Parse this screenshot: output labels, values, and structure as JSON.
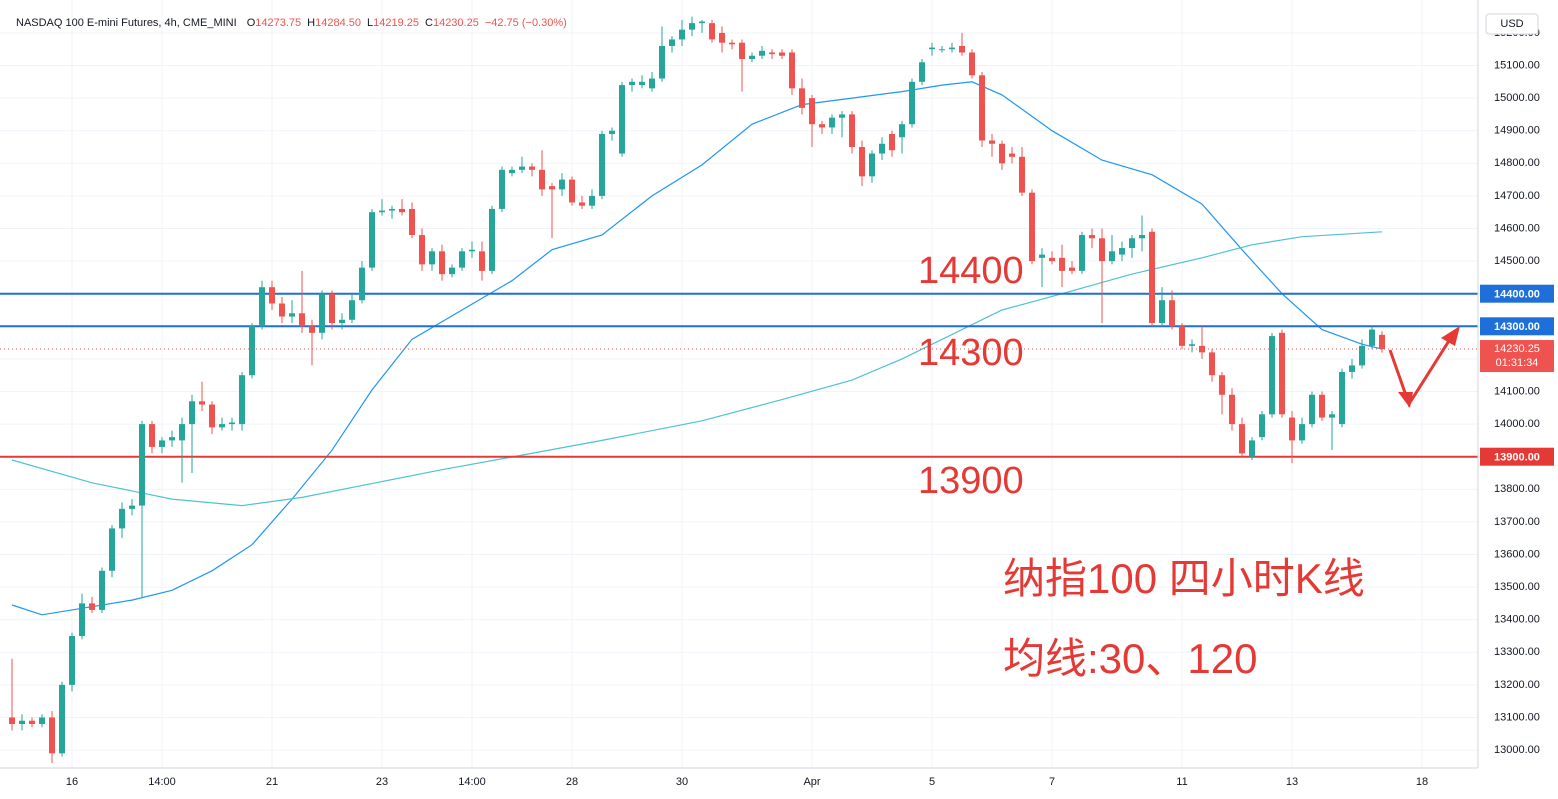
{
  "chart_data": {
    "type": "candlestick",
    "title": "NASDAQ 100 E-mini Futures, 4h, CME_MINI",
    "ohlc_legend": [
      {
        "key": "O",
        "value": "14273.75"
      },
      {
        "key": "H",
        "value": "14284.50"
      },
      {
        "key": "L",
        "value": "14219.25"
      },
      {
        "key": "C",
        "value": "14230.25"
      }
    ],
    "change": "−42.75 (−0.30%)",
    "currency": "USD",
    "up_color": "#26a69a",
    "down_color": "#ef5350",
    "ohlc": [
      [
        13100,
        13280,
        13060,
        13080
      ],
      [
        13080,
        13110,
        13060,
        13090
      ],
      [
        13090,
        13100,
        13070,
        13080
      ],
      [
        13080,
        13110,
        13070,
        13100
      ],
      [
        13100,
        13120,
        12960,
        12990
      ],
      [
        12990,
        13210,
        12980,
        13200
      ],
      [
        13200,
        13360,
        13180,
        13350
      ],
      [
        13350,
        13480,
        13340,
        13450
      ],
      [
        13450,
        13470,
        13420,
        13430
      ],
      [
        13430,
        13560,
        13420,
        13550
      ],
      [
        13550,
        13690,
        13530,
        13680
      ],
      [
        13680,
        13760,
        13650,
        13740
      ],
      [
        13740,
        13770,
        13720,
        13750
      ],
      [
        13750,
        14010,
        13470,
        14000
      ],
      [
        14000,
        14010,
        13910,
        13930
      ],
      [
        13930,
        13960,
        13910,
        13950
      ],
      [
        13950,
        13980,
        13930,
        13960
      ],
      [
        13950,
        14020,
        13820,
        14000
      ],
      [
        14000,
        14090,
        13850,
        14070
      ],
      [
        14070,
        14130,
        14040,
        14060
      ],
      [
        14060,
        14070,
        13970,
        13990
      ],
      [
        13990,
        14020,
        13980,
        14000
      ],
      [
        14000,
        14020,
        13980,
        14005
      ],
      [
        14000,
        14160,
        13980,
        14150
      ],
      [
        14150,
        14310,
        14140,
        14300
      ],
      [
        14300,
        14440,
        14290,
        14420
      ],
      [
        14420,
        14440,
        14350,
        14370
      ],
      [
        14370,
        14390,
        14310,
        14330
      ],
      [
        14330,
        14380,
        14310,
        14340
      ],
      [
        14340,
        14470,
        14280,
        14300
      ],
      [
        14300,
        14320,
        14180,
        14280
      ],
      [
        14280,
        14410,
        14260,
        14400
      ],
      [
        14400,
        14410,
        14290,
        14310
      ],
      [
        14310,
        14340,
        14290,
        14320
      ],
      [
        14320,
        14400,
        14310,
        14380
      ],
      [
        14380,
        14500,
        14370,
        14480
      ],
      [
        14480,
        14660,
        14470,
        14650
      ],
      [
        14650,
        14690,
        14640,
        14655
      ],
      [
        14655,
        14670,
        14630,
        14660
      ],
      [
        14660,
        14690,
        14640,
        14650
      ],
      [
        14660,
        14680,
        14570,
        14580
      ],
      [
        14580,
        14600,
        14470,
        14490
      ],
      [
        14490,
        14540,
        14470,
        14530
      ],
      [
        14530,
        14550,
        14440,
        14460
      ],
      [
        14460,
        14490,
        14450,
        14480
      ],
      [
        14480,
        14540,
        14470,
        14530
      ],
      [
        14530,
        14560,
        14510,
        14535
      ],
      [
        14530,
        14560,
        14440,
        14470
      ],
      [
        14470,
        14670,
        14460,
        14660
      ],
      [
        14660,
        14790,
        14650,
        14780
      ],
      [
        14770,
        14790,
        14760,
        14780
      ],
      [
        14780,
        14820,
        14770,
        14790
      ],
      [
        14790,
        14800,
        14760,
        14780
      ],
      [
        14780,
        14840,
        14700,
        14720
      ],
      [
        14730,
        14740,
        14570,
        14720
      ],
      [
        14720,
        14770,
        14700,
        14750
      ],
      [
        14750,
        14760,
        14670,
        14680
      ],
      [
        14680,
        14700,
        14660,
        14670
      ],
      [
        14670,
        14720,
        14660,
        14700
      ],
      [
        14700,
        14900,
        14690,
        14890
      ],
      [
        14890,
        14910,
        14870,
        14900
      ],
      [
        14830,
        15050,
        14820,
        15040
      ],
      [
        15040,
        15060,
        15020,
        15050
      ],
      [
        15040,
        15070,
        15030,
        15050
      ],
      [
        15030,
        15080,
        15020,
        15060
      ],
      [
        15060,
        15220,
        15050,
        15160
      ],
      [
        15160,
        15190,
        15140,
        15180
      ],
      [
        15180,
        15240,
        15160,
        15210
      ],
      [
        15210,
        15250,
        15190,
        15230
      ],
      [
        15230,
        15240,
        15200,
        15235
      ],
      [
        15230,
        15240,
        15170,
        15180
      ],
      [
        15200,
        15220,
        15140,
        15170
      ],
      [
        15170,
        15180,
        15150,
        15165
      ],
      [
        15170,
        15180,
        15020,
        15120
      ],
      [
        15120,
        15140,
        15110,
        15130
      ],
      [
        15130,
        15160,
        15120,
        15145
      ],
      [
        15140,
        15150,
        15120,
        15135
      ],
      [
        15140,
        15150,
        15120,
        15130
      ],
      [
        15140,
        15150,
        15010,
        15030
      ],
      [
        15030,
        15060,
        14950,
        14970
      ],
      [
        15000,
        15010,
        14850,
        14920
      ],
      [
        14920,
        14930,
        14890,
        14910
      ],
      [
        14910,
        14950,
        14890,
        14940
      ],
      [
        14940,
        14960,
        14880,
        14950
      ],
      [
        14950,
        14960,
        14830,
        14850
      ],
      [
        14850,
        14870,
        14730,
        14760
      ],
      [
        14760,
        14840,
        14740,
        14830
      ],
      [
        14830,
        14880,
        14810,
        14860
      ],
      [
        14890,
        14900,
        14820,
        14840
      ],
      [
        14880,
        14930,
        14830,
        14920
      ],
      [
        14920,
        15060,
        14910,
        15050
      ],
      [
        15050,
        15120,
        15040,
        15110
      ],
      [
        15150,
        15170,
        15130,
        15155
      ],
      [
        15148,
        15160,
        15140,
        15150
      ],
      [
        15150,
        15170,
        15140,
        15155
      ],
      [
        15160,
        15200,
        15130,
        15140
      ],
      [
        15140,
        15150,
        15060,
        15070
      ],
      [
        15070,
        15080,
        14850,
        14870
      ],
      [
        14870,
        14890,
        14820,
        14860
      ],
      [
        14860,
        14870,
        14780,
        14800
      ],
      [
        14830,
        14850,
        14800,
        14820
      ],
      [
        14820,
        14850,
        14700,
        14710
      ],
      [
        14710,
        14720,
        14490,
        14500
      ],
      [
        14510,
        14540,
        14420,
        14520
      ],
      [
        14510,
        14530,
        14490,
        14500
      ],
      [
        14510,
        14550,
        14420,
        14470
      ],
      [
        14480,
        14500,
        14460,
        14470
      ],
      [
        14470,
        14590,
        14460,
        14580
      ],
      [
        14580,
        14600,
        14540,
        14570
      ],
      [
        14570,
        14600,
        14310,
        14500
      ],
      [
        14500,
        14580,
        14490,
        14530
      ],
      [
        14520,
        14560,
        14500,
        14540
      ],
      [
        14540,
        14580,
        14510,
        14570
      ],
      [
        14570,
        14640,
        14530,
        14580
      ],
      [
        14590,
        14600,
        14300,
        14310
      ],
      [
        14310,
        14420,
        14300,
        14380
      ],
      [
        14380,
        14410,
        14290,
        14300
      ],
      [
        14300,
        14310,
        14230,
        14240
      ],
      [
        14240,
        14260,
        14220,
        14245
      ],
      [
        14240,
        14300,
        14200,
        14220
      ],
      [
        14220,
        14230,
        14130,
        14150
      ],
      [
        14150,
        14160,
        14030,
        14090
      ],
      [
        14090,
        14110,
        13980,
        14000
      ],
      [
        14000,
        14020,
        13900,
        13910
      ],
      [
        13900,
        13960,
        13890,
        13950
      ],
      [
        13960,
        14040,
        13950,
        14030
      ],
      [
        14030,
        14280,
        14020,
        14270
      ],
      [
        14280,
        14290,
        14020,
        14030
      ],
      [
        14020,
        14040,
        13880,
        13950
      ],
      [
        13950,
        14020,
        13940,
        14000
      ],
      [
        14000,
        14100,
        13990,
        14090
      ],
      [
        14090,
        14100,
        14010,
        14020
      ],
      [
        14020,
        14040,
        13920,
        14030
      ],
      [
        14000,
        14170,
        13990,
        14160
      ],
      [
        14160,
        14200,
        14140,
        14180
      ],
      [
        14180,
        14260,
        14170,
        14240
      ],
      [
        14240,
        14300,
        14230,
        14290
      ],
      [
        14273.75,
        14284.5,
        14219.25,
        14230.25
      ]
    ],
    "moving_averages": [
      {
        "color": "#2196f3",
        "x": [
          0,
          3,
          7,
          12,
          16,
          20,
          24,
          28,
          32,
          36,
          40,
          45,
          50,
          54,
          59,
          64,
          69,
          74,
          79,
          84,
          89,
          93,
          96,
          99,
          104,
          109,
          114,
          119,
          123,
          127,
          131,
          135,
          137
        ],
        "values": [
          13445,
          13415,
          13435,
          13460,
          13490,
          13550,
          13630,
          13770,
          13920,
          14105,
          14260,
          14350,
          14440,
          14535,
          14580,
          14700,
          14795,
          14920,
          14980,
          15000,
          15020,
          15040,
          15050,
          15010,
          14900,
          14810,
          14765,
          14675,
          14535,
          14400,
          14290,
          14245,
          14230
        ]
      },
      {
        "color": "#4dc3d1",
        "x": [
          0,
          8,
          16,
          23,
          29,
          43,
          51,
          59,
          69,
          77,
          84,
          89,
          95,
          99,
          105,
          112,
          119,
          124,
          129,
          137
        ],
        "values": [
          13890,
          13820,
          13770,
          13750,
          13775,
          13860,
          13905,
          13950,
          14010,
          14075,
          14135,
          14200,
          14290,
          14350,
          14400,
          14460,
          14510,
          14550,
          14575,
          14590
        ]
      }
    ],
    "xlim": [
      -1.2,
      146.6
    ],
    "xticks": [
      {
        "value": 6,
        "label": "16"
      },
      {
        "value": 15,
        "label": "14:00"
      },
      {
        "value": 26,
        "label": "21"
      },
      {
        "value": 37,
        "label": "23"
      },
      {
        "value": 46,
        "label": "14:00"
      },
      {
        "value": 56,
        "label": "28"
      },
      {
        "value": 67,
        "label": "30"
      },
      {
        "value": 80,
        "label": "Apr"
      },
      {
        "value": 92,
        "label": "5"
      },
      {
        "value": 104,
        "label": "7"
      },
      {
        "value": 117,
        "label": "11"
      },
      {
        "value": 128,
        "label": "13"
      },
      {
        "value": 141,
        "label": "18"
      }
    ],
    "ylim": [
      12945,
      15301
    ],
    "yticks": [
      {
        "value": 13000,
        "label": "13000.00"
      },
      {
        "value": 13100,
        "label": "13100.00"
      },
      {
        "value": 13200,
        "label": "13200.00"
      },
      {
        "value": 13300,
        "label": "13300.00"
      },
      {
        "value": 13400,
        "label": "13400.00"
      },
      {
        "value": 13500,
        "label": "13500.00"
      },
      {
        "value": 13600,
        "label": "13600.00"
      },
      {
        "value": 13700,
        "label": "13700.00"
      },
      {
        "value": 13800,
        "label": "13800.00"
      },
      {
        "value": 13900,
        "label": "13900.00"
      },
      {
        "value": 14000,
        "label": "14000.00"
      },
      {
        "value": 14100,
        "label": "14100.00"
      },
      {
        "value": 14200,
        "label": "14200.00"
      },
      {
        "value": 14300,
        "label": "14300.00"
      },
      {
        "value": 14400,
        "label": "14400.00"
      },
      {
        "value": 14500,
        "label": "14500.00"
      },
      {
        "value": 14600,
        "label": "14600.00"
      },
      {
        "value": 14700,
        "label": "14700.00"
      },
      {
        "value": 14800,
        "label": "14800.00"
      },
      {
        "value": 14900,
        "label": "14900.00"
      },
      {
        "value": 15000,
        "label": "15000.00"
      },
      {
        "value": 15100,
        "label": "15100.00"
      },
      {
        "value": 15200,
        "label": "15200.00"
      }
    ],
    "grid": true,
    "levels": [
      {
        "value": 14400,
        "label": "14400.00",
        "color": "#1e6fd9"
      },
      {
        "value": 14300,
        "label": "14300.00",
        "color": "#1e6fd9"
      },
      {
        "value": 13900,
        "label": "13900.00",
        "color": "#e53935"
      }
    ],
    "last_price": {
      "value": 14230.25,
      "label": "14230.25",
      "countdown": "01:31:34",
      "color": "#ef5350"
    },
    "annotations": [
      "14400",
      "14300",
      "13900",
      "纳指100 四小时K线",
      "均线:30、120"
    ]
  }
}
